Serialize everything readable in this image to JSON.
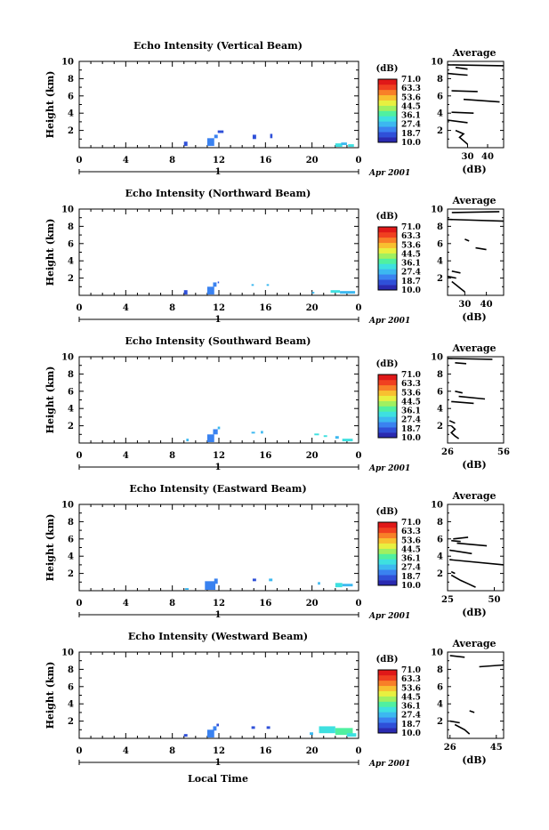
{
  "figure": {
    "xlabel_bottom": "Local Time",
    "date_label": "Apr 2001",
    "day_label": "1"
  },
  "colorbar": {
    "unit": "(dB)",
    "ticks": [
      "71.0",
      "63.3",
      "53.6",
      "44.5",
      "36.1",
      "27.4",
      "18.7",
      "10.0"
    ],
    "colors": [
      "#2a2ab0",
      "#2f50d8",
      "#3a82f0",
      "#3cb8f0",
      "#3ee0e0",
      "#50f0a0",
      "#a0f060",
      "#e8f040",
      "#f8c030",
      "#f88028",
      "#f04020",
      "#e01818"
    ]
  },
  "chart_data": [
    {
      "type": "heatmap",
      "title": "Echo Intensity (Vertical Beam)",
      "ylabel": "Height (km)",
      "xlim": [
        0,
        24
      ],
      "ylim": [
        0,
        10
      ],
      "xticks": [
        "0",
        "4",
        "8",
        "12",
        "16",
        "20",
        "0"
      ],
      "yticks": [
        "2",
        "4",
        "6",
        "8",
        "10"
      ],
      "cells": [
        {
          "t0": 9.0,
          "t1": 9.3,
          "h0": 0.2,
          "h1": 0.7,
          "c": 1
        },
        {
          "t0": 11.0,
          "t1": 11.6,
          "h0": 0.2,
          "h1": 1.1,
          "c": 2
        },
        {
          "t0": 11.6,
          "t1": 11.9,
          "h0": 1.1,
          "h1": 1.5,
          "c": 2
        },
        {
          "t0": 11.9,
          "t1": 12.4,
          "h0": 1.7,
          "h1": 2.0,
          "c": 1
        },
        {
          "t0": 14.9,
          "t1": 15.2,
          "h0": 1.0,
          "h1": 1.5,
          "c": 1
        },
        {
          "t0": 16.4,
          "t1": 16.6,
          "h0": 1.1,
          "h1": 1.6,
          "c": 1
        },
        {
          "t0": 22.0,
          "t1": 22.6,
          "h0": 0.1,
          "h1": 0.5,
          "c": 4
        },
        {
          "t0": 22.5,
          "t1": 23.0,
          "h0": 0.3,
          "h1": 0.6,
          "c": 3
        },
        {
          "t0": 23.1,
          "t1": 23.6,
          "h0": 0.1,
          "h1": 0.4,
          "c": 4
        }
      ],
      "average": {
        "title": "Average",
        "xlabel": "(dB)",
        "xlim": [
          20,
          48
        ],
        "xticks": [
          "30",
          "40"
        ],
        "segments": [
          [
            [
              20,
              9.6
            ],
            [
              48,
              9.5
            ]
          ],
          [
            [
              24,
              9.3
            ],
            [
              30,
              9.1
            ]
          ],
          [
            [
              20,
              8.6
            ],
            [
              30,
              8.4
            ]
          ],
          [
            [
              22,
              6.6
            ],
            [
              35,
              6.5
            ]
          ],
          [
            [
              28,
              5.6
            ],
            [
              46,
              5.3
            ]
          ],
          [
            [
              22,
              4.1
            ],
            [
              33,
              4.0
            ]
          ],
          [
            [
              20,
              3.2
            ],
            [
              30,
              2.9
            ]
          ],
          [
            [
              24,
              2.0
            ],
            [
              28,
              1.6
            ],
            [
              26,
              1.2
            ],
            [
              28,
              0.8
            ],
            [
              30,
              0.4
            ]
          ]
        ]
      }
    },
    {
      "type": "heatmap",
      "title": "Echo Intensity (Northward Beam)",
      "ylabel": "Height (km)",
      "xlim": [
        0,
        24
      ],
      "ylim": [
        0,
        10
      ],
      "xticks": [
        "0",
        "4",
        "8",
        "12",
        "16",
        "20",
        "0"
      ],
      "yticks": [
        "2",
        "4",
        "6",
        "8",
        "10"
      ],
      "cells": [
        {
          "t0": 9.0,
          "t1": 9.3,
          "h0": 0.1,
          "h1": 0.6,
          "c": 1
        },
        {
          "t0": 11.0,
          "t1": 11.6,
          "h0": 0.1,
          "h1": 1.0,
          "c": 2
        },
        {
          "t0": 11.5,
          "t1": 11.8,
          "h0": 1.0,
          "h1": 1.5,
          "c": 2
        },
        {
          "t0": 11.9,
          "t1": 12.0,
          "h0": 1.4,
          "h1": 1.6,
          "c": 1
        },
        {
          "t0": 14.8,
          "t1": 15.0,
          "h0": 1.1,
          "h1": 1.3,
          "c": 3
        },
        {
          "t0": 16.1,
          "t1": 16.3,
          "h0": 1.1,
          "h1": 1.3,
          "c": 3
        },
        {
          "t0": 20.0,
          "t1": 20.2,
          "h0": 0.2,
          "h1": 0.4,
          "c": 3
        },
        {
          "t0": 21.6,
          "t1": 22.4,
          "h0": 0.3,
          "h1": 0.6,
          "c": 4
        },
        {
          "t0": 22.4,
          "t1": 23.7,
          "h0": 0.2,
          "h1": 0.5,
          "c": 3
        }
      ],
      "average": {
        "title": "Average",
        "xlabel": "(dB)",
        "xlim": [
          22,
          48
        ],
        "xticks": [
          "30",
          "40"
        ],
        "segments": [
          [
            [
              24,
              9.6
            ],
            [
              46,
              9.7
            ]
          ],
          [
            [
              22,
              8.8
            ],
            [
              48,
              8.6
            ]
          ],
          [
            [
              30,
              6.5
            ],
            [
              32,
              6.3
            ]
          ],
          [
            [
              35,
              5.5
            ],
            [
              40,
              5.3
            ]
          ],
          [
            [
              24,
              2.8
            ],
            [
              28,
              2.6
            ]
          ],
          [
            [
              22,
              2.2
            ],
            [
              26,
              2.0
            ]
          ],
          [
            [
              24,
              1.6
            ],
            [
              26,
              1.2
            ],
            [
              28,
              0.8
            ],
            [
              30,
              0.4
            ]
          ]
        ]
      }
    },
    {
      "type": "heatmap",
      "title": "Echo Intensity (Southward Beam)",
      "ylabel": "Height (km)",
      "xlim": [
        0,
        24
      ],
      "ylim": [
        0,
        10
      ],
      "xticks": [
        "0",
        "4",
        "8",
        "12",
        "16",
        "20",
        "0"
      ],
      "yticks": [
        "2",
        "4",
        "6",
        "8",
        "10"
      ],
      "cells": [
        {
          "t0": 9.2,
          "t1": 9.4,
          "h0": 0.2,
          "h1": 0.5,
          "c": 3
        },
        {
          "t0": 11.0,
          "t1": 11.6,
          "h0": 0.1,
          "h1": 1.0,
          "c": 2
        },
        {
          "t0": 11.5,
          "t1": 11.9,
          "h0": 1.0,
          "h1": 1.6,
          "c": 2
        },
        {
          "t0": 11.9,
          "t1": 12.1,
          "h0": 1.6,
          "h1": 1.9,
          "c": 3
        },
        {
          "t0": 14.8,
          "t1": 15.1,
          "h0": 1.1,
          "h1": 1.3,
          "c": 3
        },
        {
          "t0": 15.6,
          "t1": 15.8,
          "h0": 1.1,
          "h1": 1.4,
          "c": 3
        },
        {
          "t0": 20.2,
          "t1": 20.6,
          "h0": 0.9,
          "h1": 1.1,
          "c": 4
        },
        {
          "t0": 21.0,
          "t1": 21.3,
          "h0": 0.7,
          "h1": 0.9,
          "c": 4
        },
        {
          "t0": 22.0,
          "t1": 22.3,
          "h0": 0.5,
          "h1": 0.8,
          "c": 3
        },
        {
          "t0": 22.6,
          "t1": 23.5,
          "h0": 0.2,
          "h1": 0.5,
          "c": 4
        }
      ],
      "average": {
        "title": "Average",
        "xlabel": "(dB)",
        "xlim": [
          26,
          56
        ],
        "xticks": [
          "26",
          "56"
        ],
        "segments": [
          [
            [
              26,
              9.8
            ],
            [
              50,
              9.7
            ]
          ],
          [
            [
              30,
              9.3
            ],
            [
              36,
              9.2
            ]
          ],
          [
            [
              30,
              6.0
            ],
            [
              34,
              5.8
            ]
          ],
          [
            [
              32,
              5.4
            ],
            [
              46,
              5.1
            ]
          ],
          [
            [
              28,
              4.8
            ],
            [
              40,
              4.6
            ]
          ],
          [
            [
              27,
              2.6
            ],
            [
              30,
              2.3
            ]
          ],
          [
            [
              28,
              2.0
            ],
            [
              30,
              1.6
            ],
            [
              28,
              1.2
            ],
            [
              30,
              0.8
            ],
            [
              32,
              0.5
            ]
          ]
        ]
      }
    },
    {
      "type": "heatmap",
      "title": "Echo Intensity (Eastward Beam)",
      "ylabel": "Height (km)",
      "xlim": [
        0,
        24
      ],
      "ylim": [
        0,
        10
      ],
      "xticks": [
        "0",
        "4",
        "8",
        "12",
        "16",
        "20",
        "0"
      ],
      "yticks": [
        "2",
        "4",
        "6",
        "8",
        "10"
      ],
      "cells": [
        {
          "t0": 9.1,
          "t1": 9.4,
          "h0": 0.1,
          "h1": 0.3,
          "c": 3
        },
        {
          "t0": 10.8,
          "t1": 11.7,
          "h0": 0.1,
          "h1": 1.1,
          "c": 2
        },
        {
          "t0": 11.6,
          "t1": 11.9,
          "h0": 0.8,
          "h1": 1.4,
          "c": 2
        },
        {
          "t0": 14.9,
          "t1": 15.2,
          "h0": 1.1,
          "h1": 1.4,
          "c": 1
        },
        {
          "t0": 16.3,
          "t1": 16.6,
          "h0": 1.1,
          "h1": 1.4,
          "c": 3
        },
        {
          "t0": 20.5,
          "t1": 20.7,
          "h0": 0.7,
          "h1": 1.0,
          "c": 3
        },
        {
          "t0": 22.0,
          "t1": 22.6,
          "h0": 0.4,
          "h1": 0.9,
          "c": 4
        },
        {
          "t0": 22.6,
          "t1": 23.5,
          "h0": 0.5,
          "h1": 0.8,
          "c": 3
        }
      ],
      "average": {
        "title": "Average",
        "xlabel": "(dB)",
        "xlim": [
          25,
          55
        ],
        "xticks": [
          "25",
          "50"
        ],
        "segments": [
          [
            [
              28,
              6.0
            ],
            [
              36,
              6.2
            ]
          ],
          [
            [
              27,
              5.8
            ],
            [
              32,
              5.7
            ]
          ],
          [
            [
              30,
              5.5
            ],
            [
              46,
              5.2
            ]
          ],
          [
            [
              26,
              4.7
            ],
            [
              38,
              4.3
            ]
          ],
          [
            [
              26,
              3.6
            ],
            [
              55,
              3.0
            ]
          ],
          [
            [
              27,
              2.2
            ],
            [
              29,
              2.0
            ]
          ],
          [
            [
              27,
              1.8
            ],
            [
              32,
              1.2
            ],
            [
              36,
              0.8
            ],
            [
              40,
              0.4
            ]
          ]
        ]
      }
    },
    {
      "type": "heatmap",
      "title": "Echo Intensity (Westward Beam)",
      "ylabel": "Height (km)",
      "xlim": [
        0,
        24
      ],
      "ylim": [
        0,
        10
      ],
      "xticks": [
        "0",
        "4",
        "8",
        "12",
        "16",
        "20",
        "0"
      ],
      "yticks": [
        "2",
        "4",
        "6",
        "8",
        "10"
      ],
      "cells": [
        {
          "t0": 9.0,
          "t1": 9.3,
          "h0": 0.2,
          "h1": 0.5,
          "c": 1
        },
        {
          "t0": 11.0,
          "t1": 11.6,
          "h0": 0.1,
          "h1": 1.0,
          "c": 2
        },
        {
          "t0": 11.5,
          "t1": 11.8,
          "h0": 0.9,
          "h1": 1.4,
          "c": 2
        },
        {
          "t0": 11.8,
          "t1": 12.0,
          "h0": 1.4,
          "h1": 1.7,
          "c": 1
        },
        {
          "t0": 14.8,
          "t1": 15.1,
          "h0": 1.1,
          "h1": 1.4,
          "c": 1
        },
        {
          "t0": 16.1,
          "t1": 16.4,
          "h0": 1.1,
          "h1": 1.4,
          "c": 1
        },
        {
          "t0": 19.8,
          "t1": 20.1,
          "h0": 0.4,
          "h1": 0.7,
          "c": 3
        },
        {
          "t0": 20.6,
          "t1": 22.0,
          "h0": 0.6,
          "h1": 1.4,
          "c": 4
        },
        {
          "t0": 22.0,
          "t1": 23.5,
          "h0": 0.4,
          "h1": 1.2,
          "c": 5
        },
        {
          "t0": 23.0,
          "t1": 23.8,
          "h0": 0.2,
          "h1": 0.6,
          "c": 4
        }
      ],
      "average": {
        "title": "Average",
        "xlabel": "(dB)",
        "xlim": [
          25,
          48
        ],
        "xticks": [
          "26",
          "45"
        ],
        "segments": [
          [
            [
              26,
              9.6
            ],
            [
              32,
              9.4
            ]
          ],
          [
            [
              38,
              8.3
            ],
            [
              48,
              8.5
            ]
          ],
          [
            [
              34,
              3.2
            ],
            [
              36,
              3.0
            ]
          ],
          [
            [
              26,
              2.0
            ],
            [
              30,
              1.8
            ]
          ],
          [
            [
              28,
              1.6
            ],
            [
              32,
              1.0
            ],
            [
              34,
              0.5
            ]
          ]
        ]
      }
    }
  ]
}
